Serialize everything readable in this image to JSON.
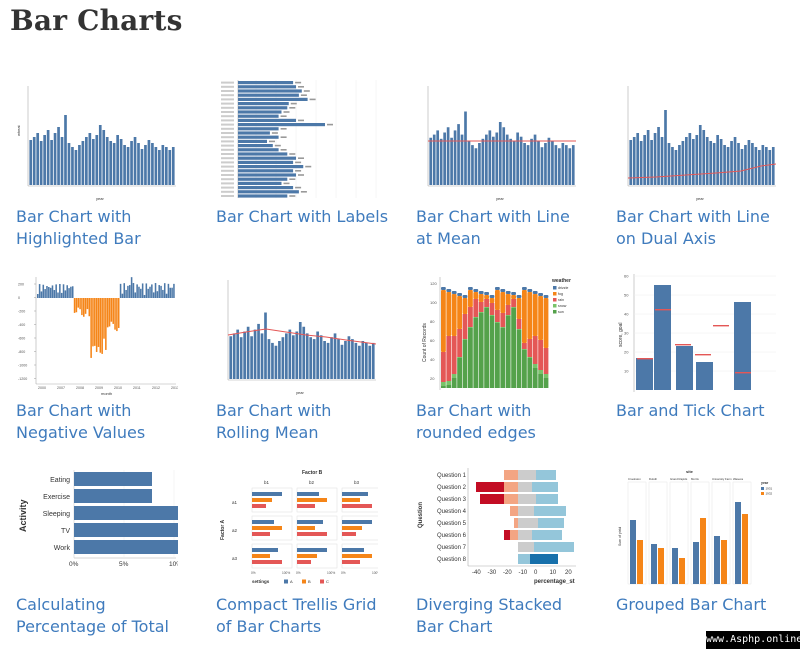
{
  "page": {
    "title": "Bar Charts"
  },
  "watermark": "www.Asphp.online",
  "cards": [
    {
      "id": "bar-chart-with-highlighted-bar",
      "line1": "Bar Chart with",
      "line2": "Highlighted Bar"
    },
    {
      "id": "bar-chart-with-labels",
      "line1": "Bar Chart with Labels",
      "line2": ""
    },
    {
      "id": "bar-chart-with-line-at-mean",
      "line1": "Bar Chart with Line",
      "line2": "at Mean"
    },
    {
      "id": "bar-chart-with-line-on-dual-axis",
      "line1": "Bar Chart with Line",
      "line2": "on Dual Axis"
    },
    {
      "id": "bar-chart-with-negative-values",
      "line1": "Bar Chart with",
      "line2": "Negative Values"
    },
    {
      "id": "bar-chart-with-rolling-mean",
      "line1": "Bar Chart with",
      "line2": "Rolling Mean"
    },
    {
      "id": "bar-chart-with-rounded-edges",
      "line1": "Bar Chart with",
      "line2": "rounded edges"
    },
    {
      "id": "bar-and-tick-chart",
      "line1": "Bar and Tick Chart",
      "line2": ""
    },
    {
      "id": "calculating-percentage-of-total",
      "line1": "Calculating",
      "line2": "Percentage of Total"
    },
    {
      "id": "compact-trellis-grid",
      "line1": "Compact Trellis Grid",
      "line2": "of Bar Charts"
    },
    {
      "id": "diverging-stacked-bar-chart",
      "line1": "Diverging Stacked",
      "line2": "Bar Chart"
    },
    {
      "id": "grouped-bar-chart",
      "line1": "Grouped Bar Chart",
      "line2": ""
    }
  ],
  "thumb_text": {
    "year": "year",
    "wheat": "wheat",
    "month": "month",
    "weather_title": "weather",
    "weather_items": [
      "drizzle",
      "fog",
      "rain",
      "snow",
      "sun"
    ],
    "count_records": "Count of Records",
    "score_goal": "score, goal",
    "tick_y": [
      "60",
      "50",
      "40",
      "30",
      "20",
      "10"
    ],
    "stack_y": [
      "120",
      "100",
      "80",
      "60",
      "40",
      "20"
    ],
    "neg_y": [
      "200",
      "0",
      "-200",
      "-400",
      "-600",
      "-800",
      "-1000",
      "-1200"
    ],
    "neg_x": [
      "2000",
      "2007",
      "2008",
      "2009",
      "2010",
      "2011",
      "2012",
      "2013"
    ],
    "activity": {
      "axis_title": "Activity",
      "rows": [
        "Eating",
        "Exercise",
        "Sleeping",
        "TV",
        "Work"
      ],
      "ticks": [
        "0%",
        "5%",
        "10%"
      ]
    },
    "trellis": {
      "title": "Factor B",
      "cols": [
        "b1",
        "b2",
        "b3"
      ],
      "rows": [
        "a1",
        "a2",
        "a3"
      ],
      "y_title": "Factor A",
      "tick": [
        "0%",
        "100%"
      ],
      "legend_title": "settings",
      "legend": [
        "A",
        "B",
        "C"
      ]
    },
    "diverging": {
      "questions": [
        "Question 1",
        "Question 2",
        "Question 3",
        "Question 4",
        "Question 5",
        "Question 6",
        "Question 7",
        "Question 8"
      ],
      "y_title": "Question",
      "x_ticks": [
        "-40",
        "-30",
        "-20",
        "-10",
        "0",
        "10",
        "20"
      ],
      "x_title": "percentage_st"
    },
    "grouped": {
      "top": "site",
      "sites": [
        "Crookston",
        "Duluth",
        "Grand Rapids",
        "Morris",
        "University Farm",
        "Waseca"
      ],
      "y_title": "Sum of yield",
      "legend_title": "year",
      "legend": [
        "1931",
        "1932"
      ]
    }
  },
  "colors": {
    "bar": "#4c78a8",
    "accent": "#e45756",
    "orange": "#f58518",
    "green": "#54a24b",
    "link": "#3f7bbd",
    "text": "#333333"
  }
}
